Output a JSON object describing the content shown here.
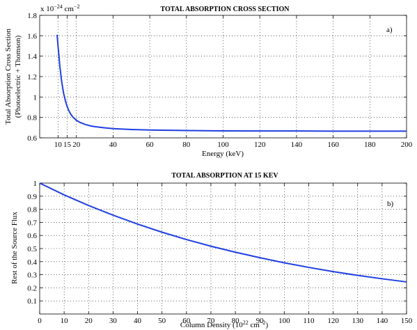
{
  "chart_data": [
    {
      "id": "a",
      "type": "line",
      "title": "TOTAL ABSORPTION CROSS SECTION",
      "xlabel": "Energy (keV)",
      "ylabel_line1": "Total Absorption Cross Section",
      "ylabel_line2": "(Photoelectric + Thomson)",
      "unit_prefix": "x 10",
      "unit_exp": "−24",
      "unit_suffix": " cm",
      "unit_suffix_exp": "−2",
      "annotation": "a)",
      "xlim": [
        0,
        200
      ],
      "ylim": [
        0.6,
        1.8
      ],
      "xticks": [
        10,
        15,
        20,
        40,
        60,
        80,
        100,
        120,
        140,
        160,
        180,
        200
      ],
      "yticks": [
        0.6,
        0.8,
        1,
        1.2,
        1.4,
        1.6,
        1.8
      ],
      "xtick_labels": [
        "10",
        "15",
        "20",
        "40",
        "60",
        "80",
        "100",
        "120",
        "140",
        "160",
        "180",
        "200"
      ],
      "ytick_labels": [
        "0.6",
        "0.8",
        "1",
        "1.2",
        "1.4",
        "1.6",
        "1.8"
      ],
      "grid": true,
      "series": [
        {
          "color": "#1f3fe0",
          "x": [
            9.5,
            10,
            11,
            12,
            13,
            14,
            15,
            16,
            17,
            18,
            20,
            22,
            25,
            28,
            30,
            35,
            40,
            50,
            60,
            70,
            80,
            100,
            120,
            140,
            160,
            180,
            200
          ],
          "y": [
            1.61,
            1.5,
            1.3,
            1.15,
            1.04,
            0.965,
            0.905,
            0.862,
            0.83,
            0.806,
            0.772,
            0.751,
            0.73,
            0.716,
            0.71,
            0.699,
            0.69,
            0.682,
            0.677,
            0.674,
            0.672,
            0.668,
            0.667,
            0.667,
            0.666,
            0.666,
            0.666
          ]
        }
      ]
    },
    {
      "id": "b",
      "type": "line",
      "title": "TOTAL ABSORPTION AT 15 KEV",
      "xlabel_main": "Column Density (10",
      "xlabel_exp1": "22",
      "xlabel_mid": " cm",
      "xlabel_exp2": "−2",
      "xlabel_end": ")",
      "ylabel": "Rest of the Source Flux",
      "annotation": "b)",
      "xlim": [
        0,
        150
      ],
      "ylim": [
        0,
        1
      ],
      "xticks": [
        0,
        10,
        20,
        30,
        40,
        50,
        60,
        70,
        80,
        90,
        100,
        110,
        120,
        130,
        140,
        150
      ],
      "yticks": [
        0.1,
        0.2,
        0.3,
        0.4,
        0.5,
        0.6,
        0.7,
        0.8,
        0.9,
        1
      ],
      "xtick_labels": [
        "0",
        "10",
        "20",
        "30",
        "40",
        "50",
        "60",
        "70",
        "80",
        "90",
        "100",
        "110",
        "120",
        "130",
        "140",
        "150"
      ],
      "ytick_labels": [
        "0.1",
        "0.2",
        "0.3",
        "0.4",
        "0.5",
        "0.6",
        "0.7",
        "0.8",
        "0.9",
        "1"
      ],
      "grid": true,
      "series": [
        {
          "color": "#1f3fe0",
          "x": [
            0,
            10,
            20,
            30,
            40,
            50,
            60,
            70,
            80,
            90,
            100,
            110,
            120,
            130,
            140,
            150
          ],
          "y": [
            1.0,
            0.91,
            0.829,
            0.755,
            0.687,
            0.625,
            0.569,
            0.518,
            0.472,
            0.43,
            0.391,
            0.356,
            0.324,
            0.295,
            0.269,
            0.245
          ]
        }
      ]
    }
  ]
}
